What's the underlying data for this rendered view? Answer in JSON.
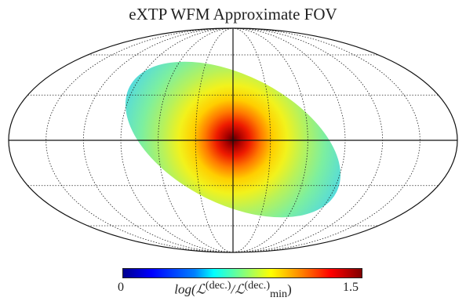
{
  "title": "eXTP WFM Approximate FOV",
  "colorbar": {
    "min_label": "0",
    "max_label": "1.5",
    "label_num": "log(ℒ",
    "label_num_sup": "(dec.)",
    "label_den": "/ℒ",
    "label_den_sup": "(dec.)",
    "label_den_sub": "min",
    "label_close": ")",
    "colormap": "jet",
    "range": [
      0,
      1.5
    ]
  },
  "map": {
    "projection": "mollweide",
    "meridians_deg": [
      -150,
      -120,
      -90,
      -60,
      -30,
      0,
      30,
      60,
      90,
      120,
      150
    ],
    "parallels_deg": [
      -60,
      -30,
      0,
      30,
      60
    ],
    "fov": {
      "center_lon_deg": 0,
      "center_lat_deg": 0,
      "peak_value": 1.5,
      "edge_value": 0.45,
      "shape": "tilted-ellipse"
    }
  }
}
